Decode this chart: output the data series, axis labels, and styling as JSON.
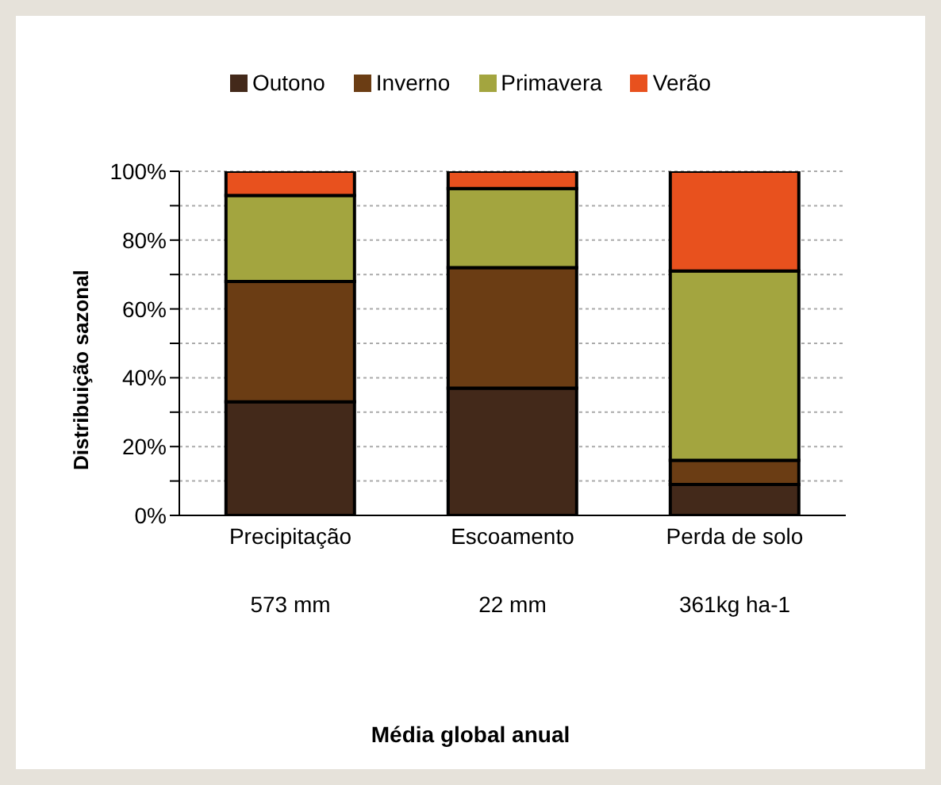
{
  "chart_data": {
    "type": "bar",
    "stacked": true,
    "ylabel": "Distribuição sazonal",
    "categories": [
      "Precipitação",
      "Escoamento",
      "Perda de solo"
    ],
    "series": [
      {
        "name": "Outono",
        "color": "#43291a",
        "values": [
          33,
          37,
          9
        ]
      },
      {
        "name": "Inverno",
        "color": "#6b3d14",
        "values": [
          35,
          35,
          7
        ]
      },
      {
        "name": "Primavera",
        "color": "#a3a53f",
        "values": [
          25,
          23,
          55
        ]
      },
      {
        "name": "Verão",
        "color": "#e8511e",
        "values": [
          7,
          5,
          29
        ]
      }
    ],
    "ylim": [
      0,
      100
    ],
    "yticks": [
      {
        "value": 0,
        "label": "0%"
      },
      {
        "value": 10,
        "label": null
      },
      {
        "value": 20,
        "label": "20%"
      },
      {
        "value": 30,
        "label": null
      },
      {
        "value": 40,
        "label": "40%"
      },
      {
        "value": 50,
        "label": null
      },
      {
        "value": 60,
        "label": "60%"
      },
      {
        "value": 70,
        "label": null
      },
      {
        "value": 80,
        "label": "80%"
      },
      {
        "value": 90,
        "label": null
      },
      {
        "value": 100,
        "label": "100%"
      }
    ],
    "grid": "y",
    "legend": "top",
    "annotations": [
      "573 mm",
      "22 mm",
      "361kg ha-1",
      "Média global anual"
    ]
  }
}
